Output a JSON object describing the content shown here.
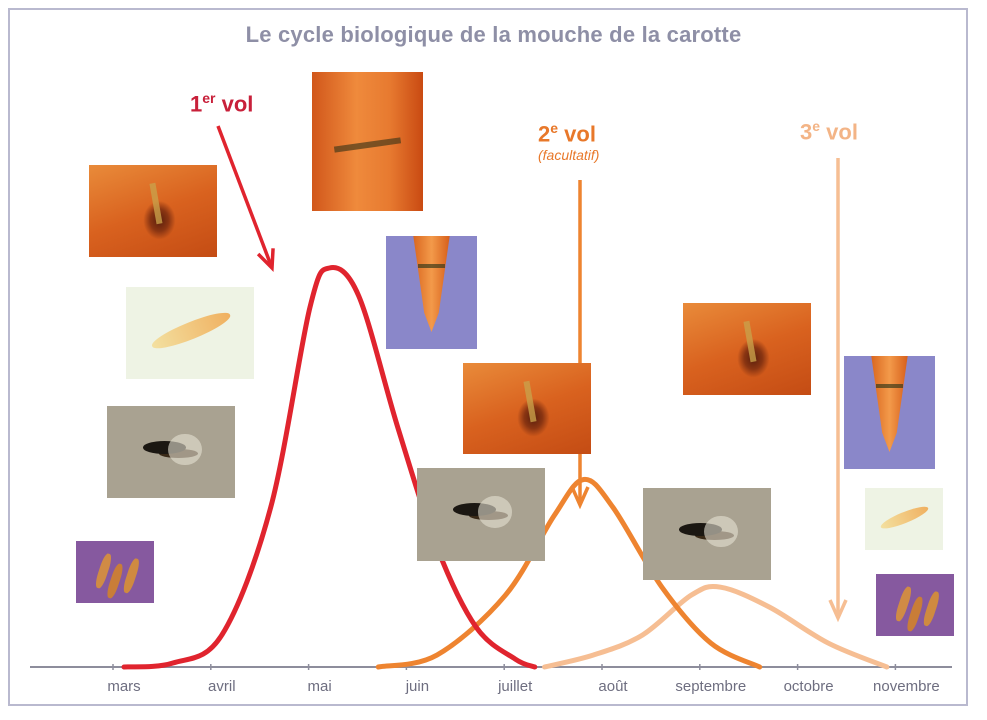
{
  "chart_data": {
    "type": "line",
    "title": "Le cycle biologique de la mouche de la carotte",
    "categories": [
      "mars",
      "avril",
      "mai",
      "juin",
      "juillet",
      "août",
      "septembre",
      "octobre",
      "novembre"
    ],
    "series": [
      {
        "name": "1er vol",
        "color": "#e0242e",
        "points": [
          [
            0,
            0
          ],
          [
            0.5,
            0.01
          ],
          [
            1,
            0.08
          ],
          [
            1.5,
            0.4
          ],
          [
            1.9,
            0.9
          ],
          [
            2.1,
            1.0
          ],
          [
            2.4,
            0.93
          ],
          [
            2.8,
            0.6
          ],
          [
            3.2,
            0.3
          ],
          [
            3.6,
            0.1
          ],
          [
            4,
            0.02
          ],
          [
            4.2,
            0
          ]
        ]
      },
      {
        "name": "2e vol (facultatif)",
        "color": "#ee8430",
        "points": [
          [
            2.6,
            0
          ],
          [
            3.2,
            0.03
          ],
          [
            3.9,
            0.18
          ],
          [
            4.4,
            0.38
          ],
          [
            4.7,
            0.47
          ],
          [
            5,
            0.4
          ],
          [
            5.5,
            0.2
          ],
          [
            6,
            0.06
          ],
          [
            6.5,
            0
          ]
        ]
      },
      {
        "name": "3e vol",
        "color": "#f6be93",
        "points": [
          [
            4.3,
            0
          ],
          [
            4.8,
            0.03
          ],
          [
            5.3,
            0.08
          ],
          [
            5.8,
            0.18
          ],
          [
            6.1,
            0.2
          ],
          [
            6.6,
            0.15
          ],
          [
            7.2,
            0.06
          ],
          [
            7.8,
            0
          ]
        ]
      }
    ],
    "labels": {
      "vol1": {
        "prefix": "1",
        "sup": "er",
        "suffix": " vol"
      },
      "vol2": {
        "prefix": "2",
        "sup": "e",
        "suffix": " vol",
        "note": "(facultatif)"
      },
      "vol3": {
        "prefix": "3",
        "sup": "e",
        "suffix": " vol"
      }
    },
    "grid": false
  }
}
